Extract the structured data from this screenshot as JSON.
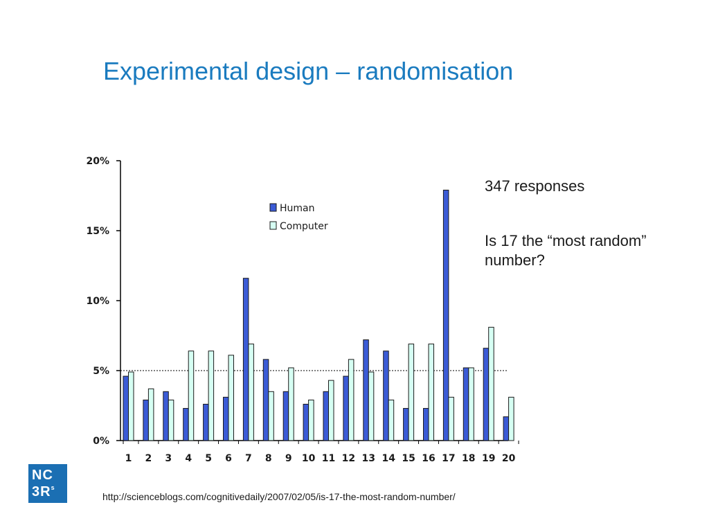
{
  "slide": {
    "title": "Experimental design – randomisation",
    "notes": [
      "347 responses",
      "Is 17 the “most random” number?"
    ],
    "source_url": "http://scienceblogs.com/cognitivedaily/2007/02/05/is-17-the-most-random-number/",
    "logo": {
      "line1": "NC",
      "line2": "3R",
      "superscript": "s"
    }
  },
  "colors": {
    "title": "#1a7bbf",
    "human": "#3b5bd6",
    "computer": "#d6fff3",
    "logo": "#1b6fb3"
  },
  "chart_data": {
    "type": "bar",
    "categories": [
      "1",
      "2",
      "3",
      "4",
      "5",
      "6",
      "7",
      "8",
      "9",
      "10",
      "11",
      "12",
      "13",
      "14",
      "15",
      "16",
      "17",
      "18",
      "19",
      "20"
    ],
    "series": [
      {
        "name": "Human",
        "values": [
          4.6,
          2.9,
          3.5,
          2.3,
          2.6,
          3.1,
          11.6,
          5.8,
          3.5,
          2.6,
          3.5,
          4.6,
          7.2,
          6.4,
          2.3,
          2.3,
          17.9,
          5.2,
          6.6,
          1.7
        ]
      },
      {
        "name": "Computer",
        "values": [
          4.9,
          3.7,
          2.9,
          6.4,
          6.4,
          6.1,
          6.9,
          3.5,
          5.2,
          2.9,
          4.3,
          5.8,
          4.9,
          2.9,
          6.9,
          6.9,
          3.1,
          5.2,
          8.1,
          3.1
        ]
      }
    ],
    "y_ticks": [
      "0%",
      "5%",
      "10%",
      "15%",
      "20%"
    ],
    "ylim": [
      0,
      20
    ],
    "reference_line": 5,
    "legend_position": "top-left",
    "grid": false
  }
}
